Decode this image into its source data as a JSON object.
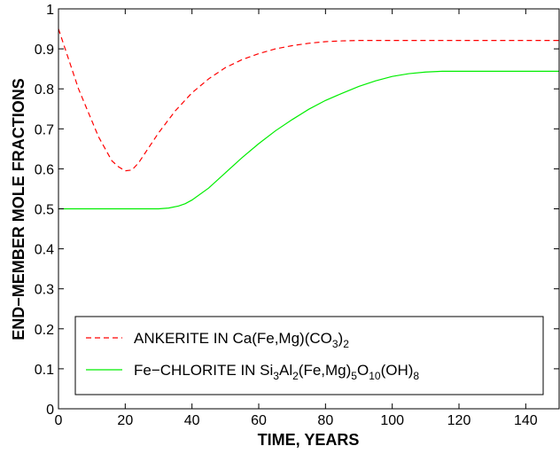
{
  "chart_data": {
    "type": "line",
    "title": "",
    "xlabel": "TIME, YEARS",
    "ylabel": "END−MEMBER MOLE FRACTIONS",
    "xlim": [
      0,
      150
    ],
    "ylim": [
      0,
      1
    ],
    "xticks": [
      0,
      20,
      40,
      60,
      80,
      100,
      120,
      140
    ],
    "yticks": [
      0,
      0.1,
      0.2,
      0.3,
      0.4,
      0.5,
      0.6,
      0.7,
      0.8,
      0.9,
      1
    ],
    "ytick_labels": [
      "0",
      "0.1",
      "0.2",
      "0.3",
      "0.4",
      "0.5",
      "0.6",
      "0.7",
      "0.8",
      "0.9",
      "1"
    ],
    "grid": false,
    "legend_position": "bottom",
    "series": [
      {
        "name": "ANKERITE IN Ca(Fe,Mg)(CO3)2",
        "color": "#ff0000",
        "style": "dashed",
        "x": [
          0,
          2,
          4,
          6,
          8,
          10,
          12,
          14,
          16,
          18,
          20,
          22,
          24,
          26,
          28,
          30,
          35,
          40,
          45,
          50,
          55,
          60,
          65,
          70,
          75,
          80,
          85,
          90,
          95,
          100,
          110,
          120,
          130,
          140,
          150
        ],
        "y": [
          0.95,
          0.9,
          0.85,
          0.8,
          0.76,
          0.72,
          0.68,
          0.65,
          0.62,
          0.605,
          0.595,
          0.597,
          0.615,
          0.64,
          0.665,
          0.69,
          0.745,
          0.79,
          0.825,
          0.853,
          0.873,
          0.888,
          0.9,
          0.908,
          0.914,
          0.918,
          0.92,
          0.921,
          0.921,
          0.921,
          0.921,
          0.921,
          0.921,
          0.921,
          0.921
        ]
      },
      {
        "name": "Fe−CHLORITE IN Si3Al2(Fe,Mg)5O10(OH)8",
        "color": "#00ee00",
        "style": "solid",
        "x": [
          0,
          10,
          20,
          30,
          33,
          36,
          38,
          40,
          45,
          50,
          55,
          60,
          65,
          70,
          75,
          80,
          85,
          90,
          95,
          100,
          105,
          110,
          115,
          120,
          130,
          140,
          150
        ],
        "y": [
          0.5,
          0.5,
          0.5,
          0.5,
          0.502,
          0.507,
          0.513,
          0.522,
          0.552,
          0.59,
          0.628,
          0.663,
          0.695,
          0.723,
          0.749,
          0.771,
          0.789,
          0.806,
          0.82,
          0.831,
          0.838,
          0.842,
          0.844,
          0.844,
          0.844,
          0.844,
          0.844
        ]
      }
    ]
  },
  "legend": {
    "ankerite": {
      "prefix": "ANKERITE  IN  Ca(Fe,Mg)(CO",
      "sub1": "3",
      "mid1": ")",
      "sub2": "2"
    },
    "chlorite": {
      "prefix": "Fe−CHLORITE  IN  Si",
      "sub1": "3",
      "mid1": "Al",
      "sub2": "2",
      "mid2": "(Fe,Mg)",
      "sub3": "5",
      "mid3": "O",
      "sub4": "10",
      "mid4": "(OH)",
      "sub5": "8"
    }
  }
}
